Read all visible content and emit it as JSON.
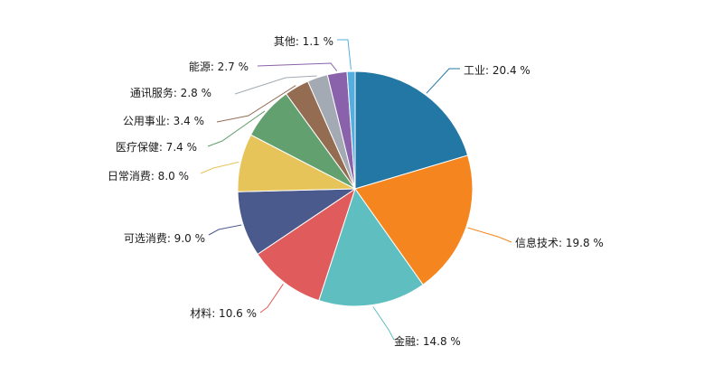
{
  "chart_data": {
    "type": "pie",
    "title": "",
    "unit": "%",
    "start_angle_deg": 90,
    "direction": "clockwise",
    "slices": [
      {
        "label": "工业",
        "value": 20.4,
        "display": "工业: 20.4 %",
        "color": "#2277a4"
      },
      {
        "label": "信息技术",
        "value": 19.8,
        "display": "信息技术: 19.8 %",
        "color": "#f5861f"
      },
      {
        "label": "金融",
        "value": 14.8,
        "display": "金融: 14.8 %",
        "color": "#5fbfc0"
      },
      {
        "label": "材料",
        "value": 10.6,
        "display": "材料: 10.6 %",
        "color": "#e05c5c"
      },
      {
        "label": "可选消费",
        "value": 9.0,
        "display": "可选消费: 9.0 %",
        "color": "#4a5a8c"
      },
      {
        "label": "日常消费",
        "value": 8.0,
        "display": "日常消费: 8.0 %",
        "color": "#e6c45a"
      },
      {
        "label": "医疗保健",
        "value": 7.4,
        "display": "医疗保健: 7.4 %",
        "color": "#62a070"
      },
      {
        "label": "公用事业",
        "value": 3.4,
        "display": "公用事业: 3.4 %",
        "color": "#946c52"
      },
      {
        "label": "通讯服务",
        "value": 2.8,
        "display": "通讯服务: 2.8 %",
        "color": "#a3aab3"
      },
      {
        "label": "能源",
        "value": 2.7,
        "display": "能源: 2.7 %",
        "color": "#8a62ac"
      },
      {
        "label": "其他",
        "value": 1.1,
        "display": "其他: 1.1 %",
        "color": "#55aee0"
      }
    ]
  }
}
